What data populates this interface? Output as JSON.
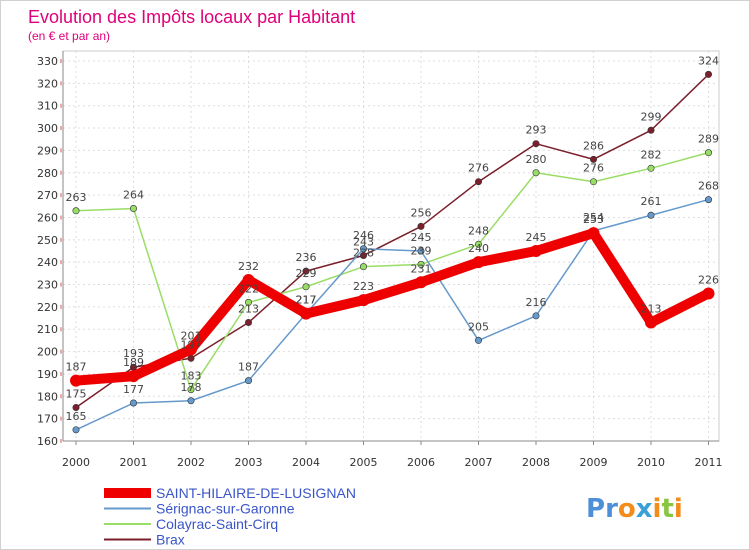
{
  "chart_data": {
    "type": "line",
    "title": "Evolution des Impôts locaux par Habitant",
    "subtitle": "(en € et par an)",
    "xlabel": "",
    "ylabel": "",
    "ylim": [
      160,
      330
    ],
    "ytick_step": 10,
    "categories": [
      "2000",
      "2001",
      "2002",
      "2003",
      "2004",
      "2005",
      "2006",
      "2007",
      "2008",
      "2009",
      "2010",
      "2011"
    ],
    "series": [
      {
        "name": "Brax",
        "color": "#7a1f2b",
        "values": [
          175,
          193,
          197,
          213,
          236,
          243,
          256,
          276,
          293,
          286,
          299,
          324
        ]
      },
      {
        "name": "Colayrac-Saint-Cirq",
        "color": "#99dd66",
        "values": [
          263,
          264,
          183,
          222,
          229,
          238,
          239,
          248,
          280,
          276,
          282,
          289
        ]
      },
      {
        "name": "Sérignac-sur-Garonne",
        "color": "#6699cc",
        "values": [
          165,
          177,
          178,
          187,
          217,
          246,
          245,
          205,
          216,
          254,
          261,
          268
        ]
      },
      {
        "name": "SAINT-HILAIRE-DE-LUSIGNAN",
        "color": "#ee0000",
        "values": [
          187,
          189,
          201,
          232,
          217,
          223,
          231,
          240,
          245,
          253,
          213,
          226
        ]
      }
    ],
    "legend": {
      "position": "bottom-left",
      "entries": [
        "SAINT-HILAIRE-DE-LUSIGNAN",
        "Sérignac-sur-Garonne",
        "Colayrac-Saint-Cirq",
        "Brax"
      ]
    },
    "grid": true
  },
  "brand": {
    "logo_text": "Proxiti",
    "colors": [
      "#4f8fd8",
      "#4f8fd8",
      "#f28c1a",
      "#3aa0d8",
      "#f28c1a",
      "#88c540",
      "#f28c1a"
    ]
  }
}
